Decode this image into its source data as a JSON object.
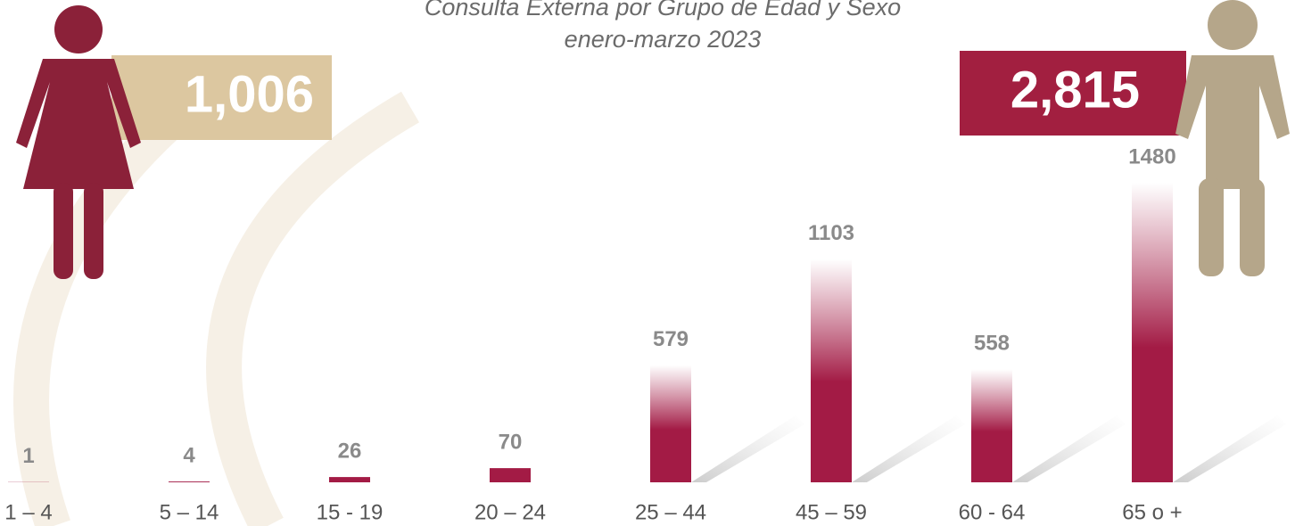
{
  "chart_data": {
    "type": "bar",
    "title": "Consulta Externa por Grupo de Edad y Sexo",
    "subtitle": "enero-marzo 2023",
    "categories": [
      "1 – 4",
      "5 – 14",
      "15 - 19",
      "20 – 24",
      "25 – 44",
      "45 – 59",
      "60 - 64",
      "65 o +"
    ],
    "values": [
      1,
      4,
      26,
      70,
      579,
      1103,
      558,
      1480
    ],
    "color": "#a31b45",
    "totals": {
      "values": [
        1006,
        2815
      ],
      "value_labels": [
        "1,006",
        "2,815"
      ],
      "colors": [
        "#dcc7a0",
        "#a21f40"
      ]
    }
  }
}
